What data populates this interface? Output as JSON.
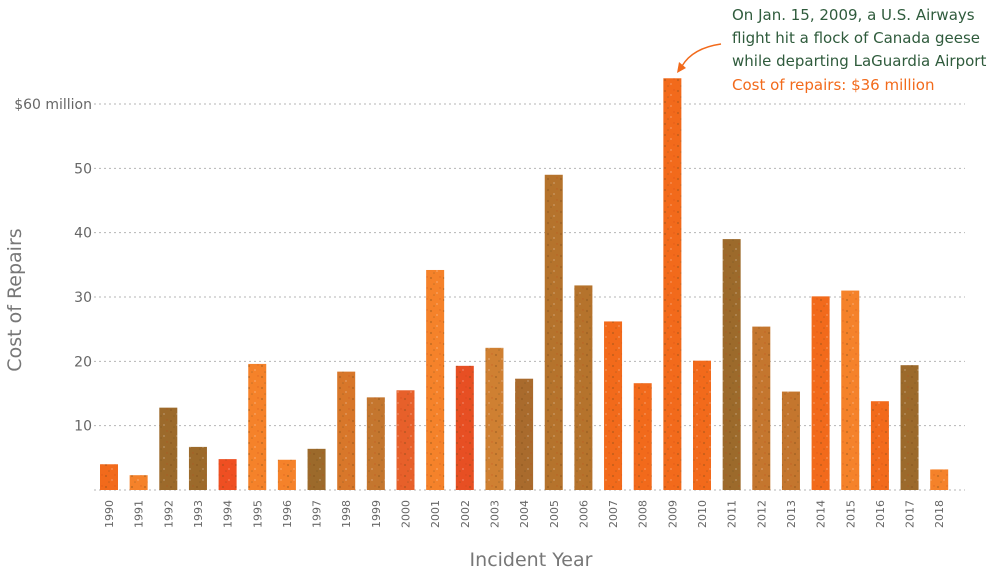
{
  "chart_data": {
    "type": "bar",
    "xlabel": "Incident Year",
    "ylabel": "Cost of Repairs",
    "ylim": [
      0,
      60
    ],
    "y_ticks": [
      {
        "value": 10,
        "label": "10"
      },
      {
        "value": 20,
        "label": "20"
      },
      {
        "value": 30,
        "label": "30"
      },
      {
        "value": 40,
        "label": "40"
      },
      {
        "value": 50,
        "label": "50"
      },
      {
        "value": 60,
        "label": "$60 million"
      }
    ],
    "grid": true,
    "categories": [
      "1990",
      "1991",
      "1992",
      "1993",
      "1994",
      "1995",
      "1996",
      "1997",
      "1998",
      "1999",
      "2000",
      "2001",
      "2002",
      "2003",
      "2004",
      "2005",
      "2006",
      "2007",
      "2008",
      "2009",
      "2010",
      "2011",
      "2012",
      "2013",
      "2014",
      "2015",
      "2016",
      "2017",
      "2018"
    ],
    "values": [
      4,
      2.3,
      12.8,
      6.7,
      4.8,
      19.6,
      4.7,
      6.4,
      18.4,
      14.4,
      15.5,
      34.2,
      19.3,
      22.1,
      17.3,
      49,
      31.8,
      26.2,
      16.6,
      64,
      20.1,
      39,
      25.4,
      15.3,
      30.1,
      31,
      13.8,
      19.4,
      3.2
    ],
    "bar_colors": [
      "#f26a1b",
      "#f5822a",
      "#9c6a2b",
      "#9c6a2b",
      "#ef4f22",
      "#f5822a",
      "#f5822a",
      "#9c6a2b",
      "#d8772a",
      "#c4762e",
      "#e7602a",
      "#f5822a",
      "#e74f23",
      "#cf8032",
      "#a96b2d",
      "#b5732c",
      "#b5732c",
      "#f26a1b",
      "#f26a1b",
      "#f26a1b",
      "#f26a1b",
      "#9c6a2b",
      "#c4762e",
      "#c4762e",
      "#f26a1b",
      "#f5822a",
      "#f26a1b",
      "#9c6a2b",
      "#f5822a"
    ],
    "annotation": {
      "target": "2009",
      "lines": [
        "On Jan. 15, 2009, a U.S. Airways",
        "flight hit a flock of Canada geese",
        "while departing LaGuardia Airport"
      ],
      "highlight": "Cost of repairs: $36 million",
      "text_color": "#2f5b3c",
      "highlight_color": "#f26a1b"
    }
  }
}
